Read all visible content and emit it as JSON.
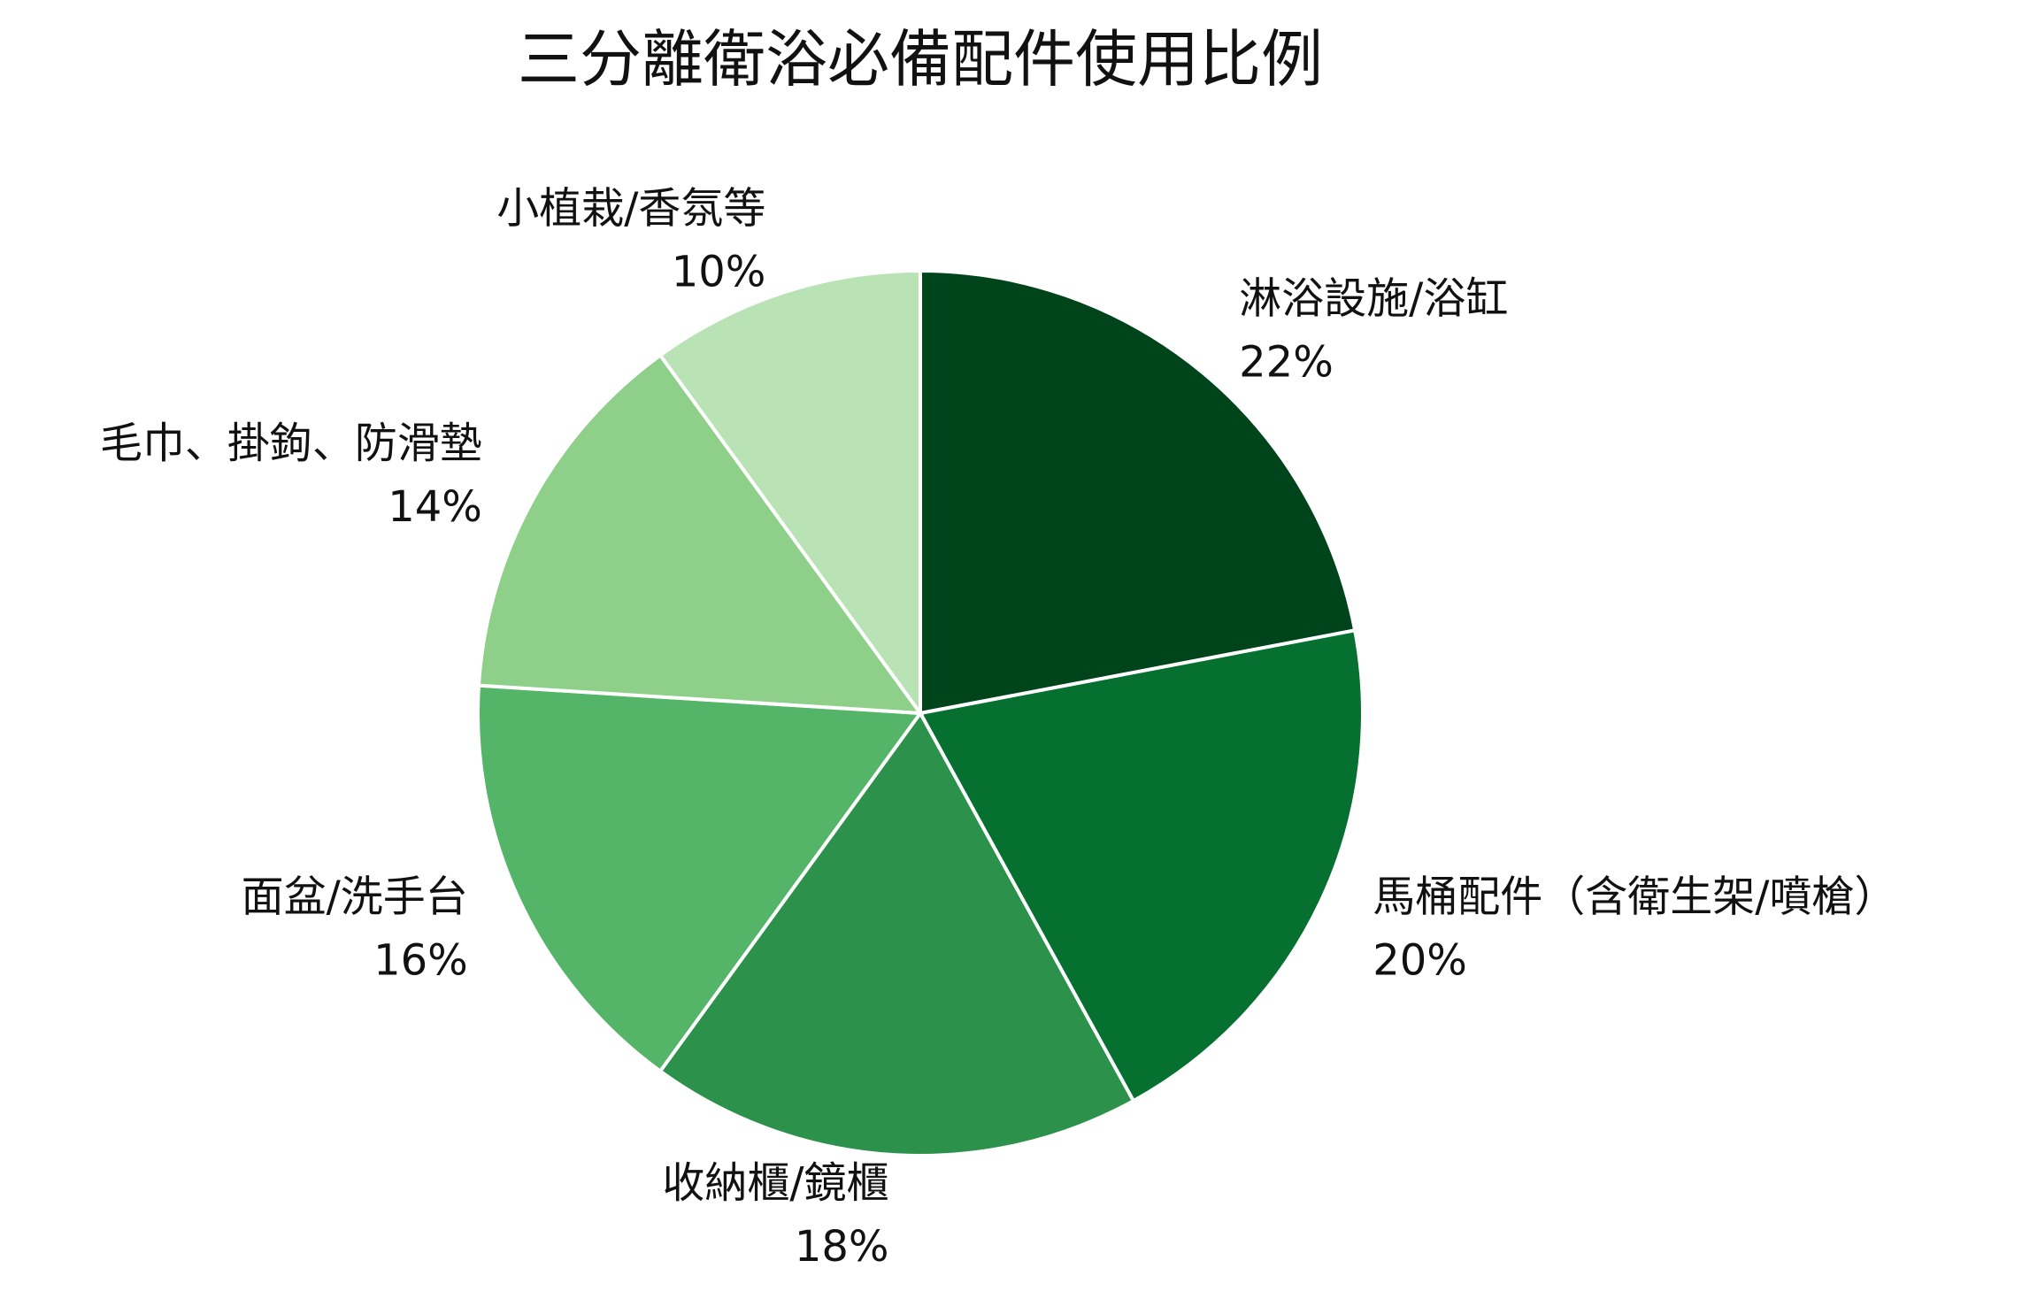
{
  "chart_data": {
    "type": "pie",
    "title": "三分離衛浴必備配件使用比例",
    "categories": [
      "淋浴設施/浴缸",
      "馬桶配件（含衛生架/噴槍）",
      "收納櫃/鏡櫃",
      "面盆/洗手台",
      "毛巾、掛鉤、防滑墊",
      "小植栽/香氛等"
    ],
    "values": [
      22,
      20,
      18,
      16,
      14,
      10
    ],
    "value_labels": [
      "22%",
      "20%",
      "18%",
      "16%",
      "14%",
      "10%"
    ],
    "colors": [
      "#00441b",
      "#067030",
      "#2c914b",
      "#54b468",
      "#8ecf89",
      "#b9e3b4"
    ]
  }
}
